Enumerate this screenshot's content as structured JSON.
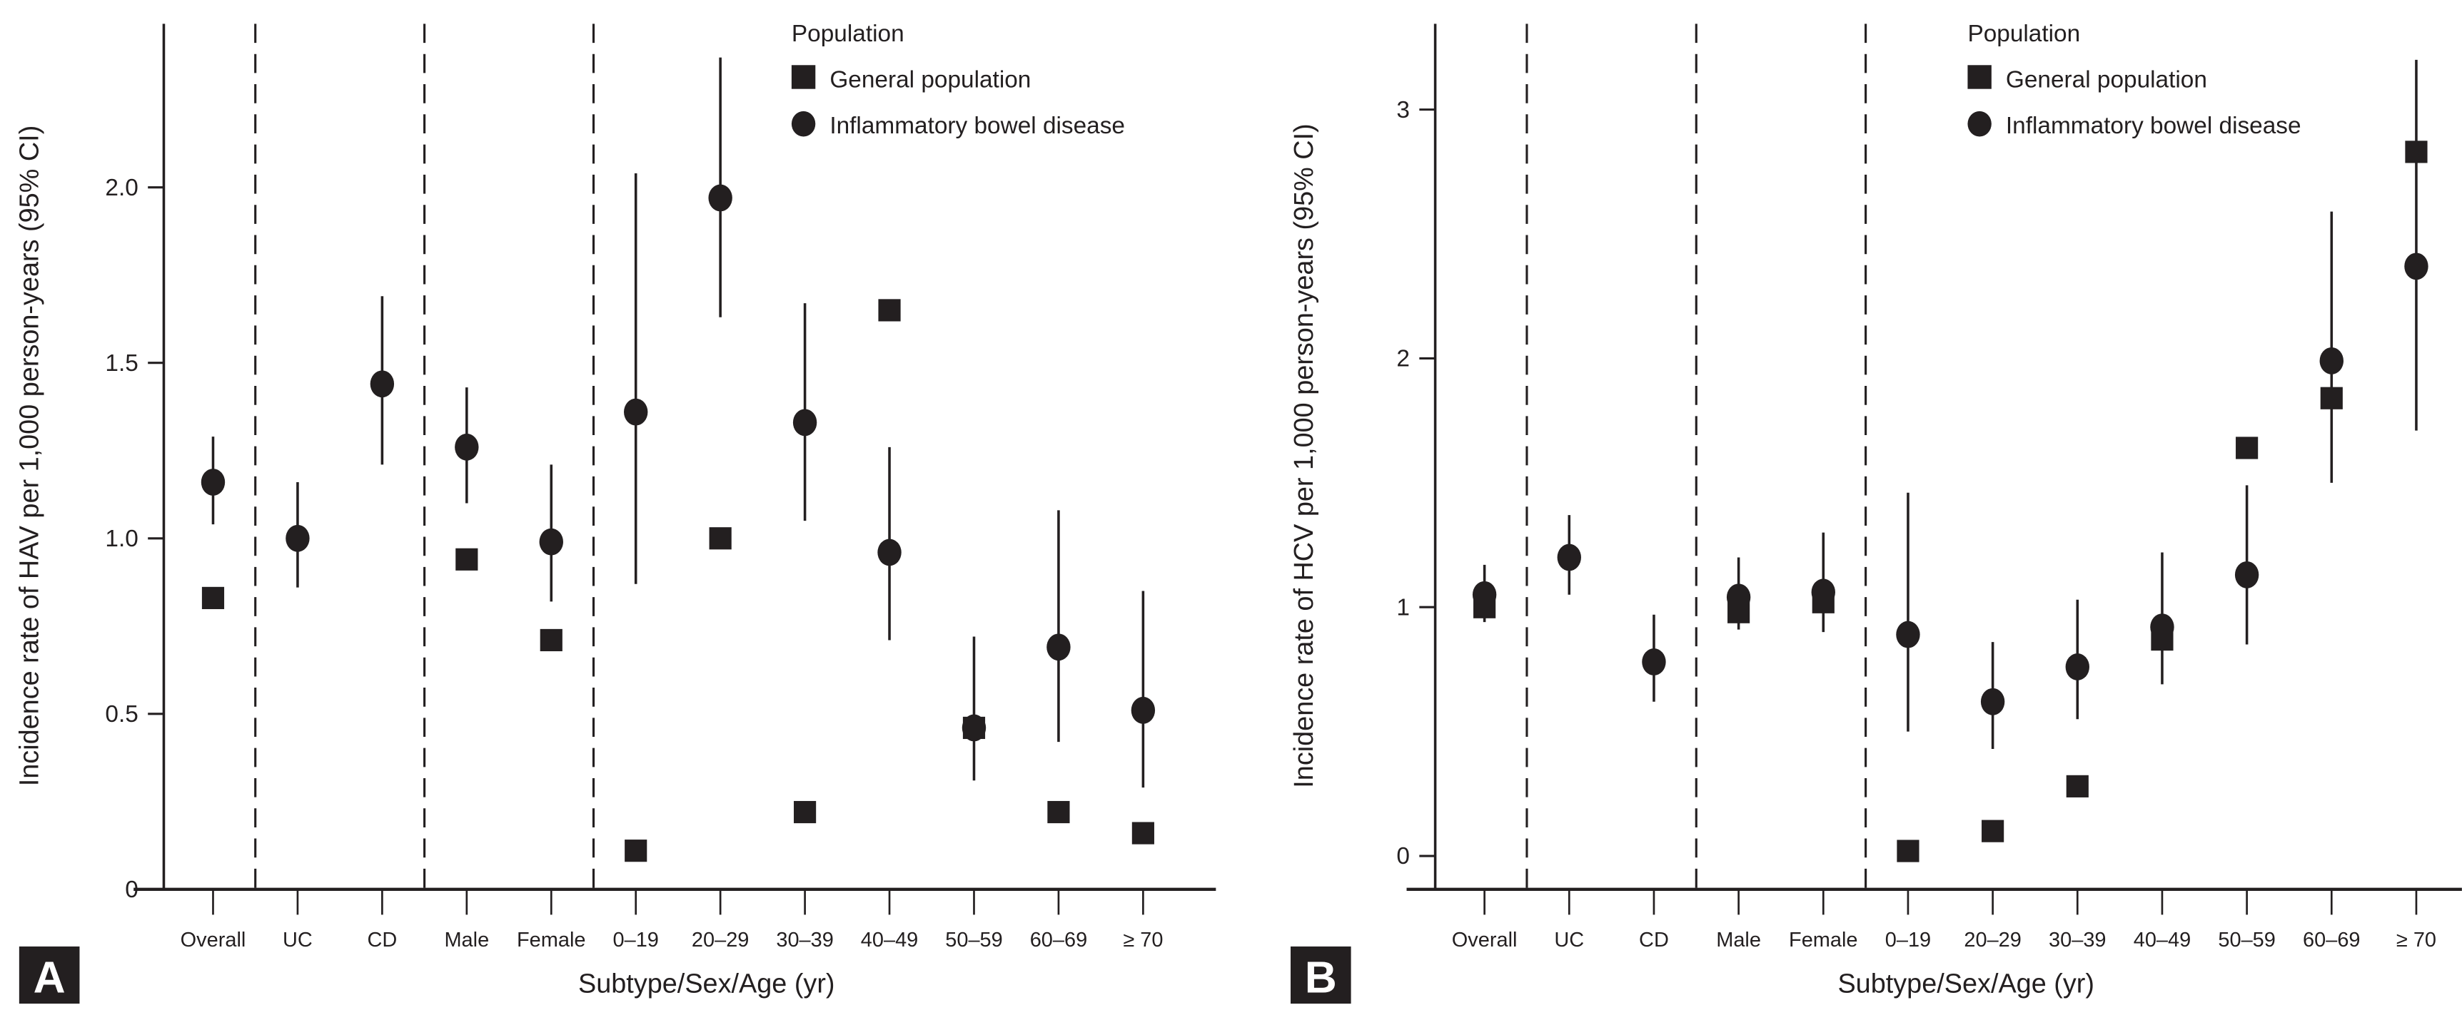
{
  "chart_data": [
    {
      "type": "scatter",
      "panel_label": "A",
      "xlabel": "Subtype/Sex/Age (yr)",
      "ylabel": "Incidence rate of HAV per 1,000 person-years (95% CI)",
      "ylim": [
        0,
        2.45
      ],
      "yticks": [
        0,
        0.5,
        1.0,
        1.5,
        2.0
      ],
      "ytick_labels": [
        "0",
        "0.5",
        "1.0",
        "1.5",
        "2.0"
      ],
      "grid": false,
      "categories": [
        "Overall",
        "UC",
        "CD",
        "Male",
        "Female",
        "0–19",
        "20–29",
        "30–39",
        "40–49",
        "50–59",
        "60–69",
        "≥ 70"
      ],
      "group_separators_after": [
        "Overall",
        "CD",
        "Female"
      ],
      "legend": {
        "title": "Population",
        "placement": "top-right",
        "entries": [
          "General population",
          "Inflammatory bowel disease"
        ]
      },
      "series": [
        {
          "name": "General population",
          "marker": "square",
          "values": [
            0.83,
            null,
            null,
            0.94,
            0.71,
            0.11,
            1.0,
            0.22,
            1.65,
            0.46,
            0.22,
            0.16
          ]
        },
        {
          "name": "Inflammatory bowel disease",
          "marker": "circle",
          "values": [
            1.16,
            1.0,
            1.44,
            1.26,
            0.99,
            1.36,
            1.97,
            1.33,
            0.96,
            0.46,
            0.69,
            0.51
          ],
          "ci_low": [
            1.04,
            0.86,
            1.21,
            1.1,
            0.82,
            0.87,
            1.63,
            1.05,
            0.71,
            0.31,
            0.42,
            0.29
          ],
          "ci_high": [
            1.29,
            1.16,
            1.69,
            1.43,
            1.21,
            2.04,
            2.37,
            1.67,
            1.26,
            0.72,
            1.08,
            0.85
          ]
        }
      ]
    },
    {
      "type": "scatter",
      "panel_label": "B",
      "xlabel": "Subtype/Sex/Age (yr)",
      "ylabel": "Incidence rate of HCV per 1,000 person-years (95% CI)",
      "ylim": [
        -0.13,
        3.35
      ],
      "yticks": [
        0,
        1,
        2,
        3
      ],
      "ytick_labels": [
        "0",
        "1",
        "2",
        "3"
      ],
      "grid": false,
      "categories": [
        "Overall",
        "UC",
        "CD",
        "Male",
        "Female",
        "0–19",
        "20–29",
        "30–39",
        "40–49",
        "50–59",
        "60–69",
        "≥ 70"
      ],
      "group_separators_after": [
        "Overall",
        "CD",
        "Female"
      ],
      "legend": {
        "title": "Population",
        "placement": "top-right",
        "entries": [
          "General population",
          "Inflammatory bowel disease"
        ]
      },
      "series": [
        {
          "name": "General population",
          "marker": "square",
          "values": [
            1.0,
            null,
            null,
            0.98,
            1.02,
            0.02,
            0.1,
            0.28,
            0.87,
            1.64,
            1.84,
            2.83
          ]
        },
        {
          "name": "Inflammatory bowel disease",
          "marker": "circle",
          "values": [
            1.05,
            1.2,
            0.78,
            1.04,
            1.06,
            0.89,
            0.62,
            0.76,
            0.92,
            1.13,
            1.99,
            2.37
          ],
          "ci_low": [
            0.94,
            1.05,
            0.62,
            0.91,
            0.9,
            0.5,
            0.43,
            0.55,
            0.69,
            0.85,
            1.5,
            1.71
          ],
          "ci_high": [
            1.17,
            1.37,
            0.97,
            1.2,
            1.3,
            1.46,
            0.86,
            1.03,
            1.22,
            1.49,
            2.59,
            3.2
          ]
        }
      ]
    }
  ]
}
